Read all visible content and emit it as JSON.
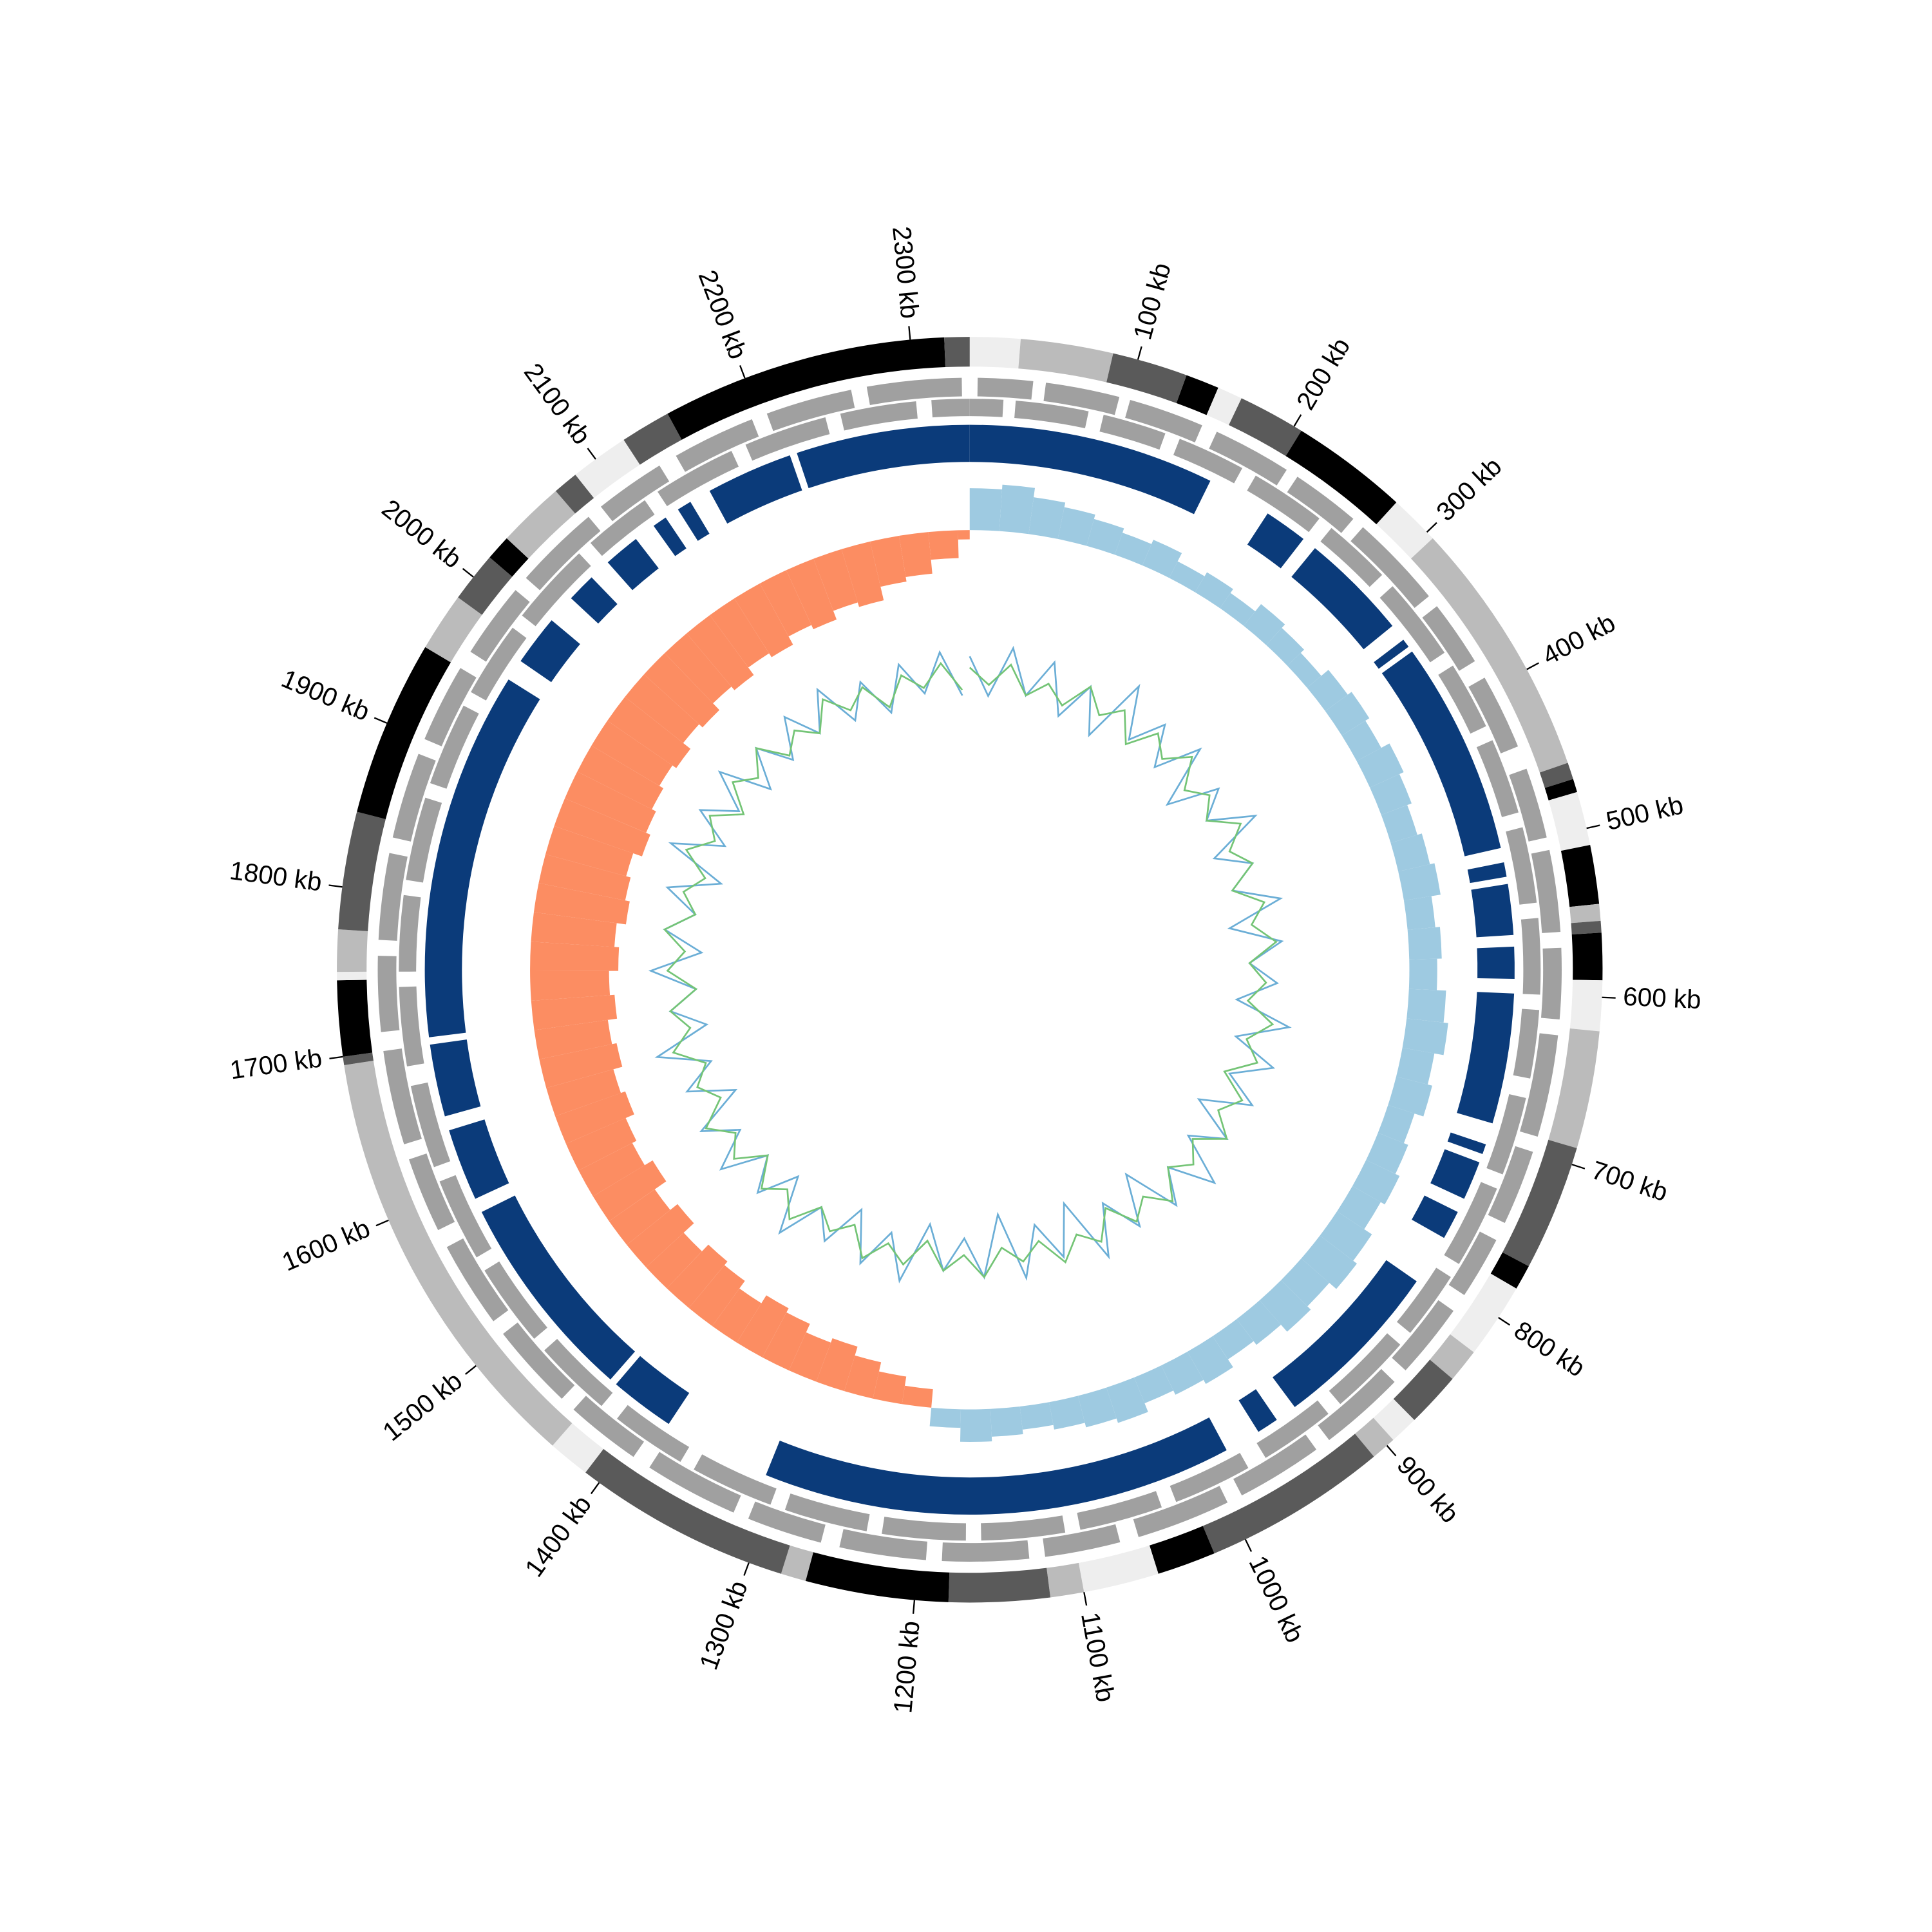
{
  "chart_data": {
    "type": "circos",
    "xlim": [
      0,
      2335
    ],
    "xticks": [
      {
        "value": 100,
        "label": "100 kb"
      },
      {
        "value": 200,
        "label": "200 kb"
      },
      {
        "value": 300,
        "label": "300 kb"
      },
      {
        "value": 400,
        "label": "400 kb"
      },
      {
        "value": 500,
        "label": "500 kb"
      },
      {
        "value": 600,
        "label": "600 kb"
      },
      {
        "value": 700,
        "label": "700 kb"
      },
      {
        "value": 800,
        "label": "800 kb"
      },
      {
        "value": 900,
        "label": "900 kb"
      },
      {
        "value": 1000,
        "label": "1000 kb"
      },
      {
        "value": 1100,
        "label": "1100 kb"
      },
      {
        "value": 1200,
        "label": "1200 kb"
      },
      {
        "value": 1300,
        "label": "1300 kb"
      },
      {
        "value": 1400,
        "label": "1400 kb"
      },
      {
        "value": 1500,
        "label": "1500 kb"
      },
      {
        "value": 1600,
        "label": "1600 kb"
      },
      {
        "value": 1700,
        "label": "1700 kb"
      },
      {
        "value": 1800,
        "label": "1800 kb"
      },
      {
        "value": 1900,
        "label": "1900 kb"
      },
      {
        "value": 2000,
        "label": "2000 kb"
      },
      {
        "value": 2100,
        "label": "2100 kb"
      },
      {
        "value": 2200,
        "label": "2200 kb"
      },
      {
        "value": 2300,
        "label": "2300 kb"
      }
    ],
    "bands": [
      {
        "start": 0,
        "end": 30,
        "color": "#eeeeee"
      },
      {
        "start": 30,
        "end": 85,
        "color": "#bbbbbb"
      },
      {
        "start": 85,
        "end": 130,
        "color": "#5a5a5a"
      },
      {
        "start": 130,
        "end": 150,
        "color": "#000000"
      },
      {
        "start": 150,
        "end": 165,
        "color": "#eeeeee"
      },
      {
        "start": 165,
        "end": 205,
        "color": "#5a5a5a"
      },
      {
        "start": 205,
        "end": 275,
        "color": "#000000"
      },
      {
        "start": 275,
        "end": 305,
        "color": "#eeeeee"
      },
      {
        "start": 305,
        "end": 460,
        "color": "#bbbbbb"
      },
      {
        "start": 460,
        "end": 470,
        "color": "#5a5a5a"
      },
      {
        "start": 470,
        "end": 478,
        "color": "#000000"
      },
      {
        "start": 478,
        "end": 510,
        "color": "#eeeeee"
      },
      {
        "start": 510,
        "end": 545,
        "color": "#000000"
      },
      {
        "start": 545,
        "end": 555,
        "color": "#bbbbbb"
      },
      {
        "start": 555,
        "end": 562,
        "color": "#5a5a5a"
      },
      {
        "start": 562,
        "end": 590,
        "color": "#000000"
      },
      {
        "start": 590,
        "end": 620,
        "color": "#eeeeee"
      },
      {
        "start": 620,
        "end": 690,
        "color": "#bbbbbb"
      },
      {
        "start": 690,
        "end": 765,
        "color": "#5a5a5a"
      },
      {
        "start": 765,
        "end": 780,
        "color": "#000000"
      },
      {
        "start": 780,
        "end": 825,
        "color": "#eeeeee"
      },
      {
        "start": 825,
        "end": 845,
        "color": "#bbbbbb"
      },
      {
        "start": 845,
        "end": 878,
        "color": "#5a5a5a"
      },
      {
        "start": 878,
        "end": 895,
        "color": "#eeeeee"
      },
      {
        "start": 895,
        "end": 910,
        "color": "#bbbbbb"
      },
      {
        "start": 910,
        "end": 1020,
        "color": "#5a5a5a"
      },
      {
        "start": 1020,
        "end": 1055,
        "color": "#000000"
      },
      {
        "start": 1055,
        "end": 1100,
        "color": "#eeeeee"
      },
      {
        "start": 1100,
        "end": 1120,
        "color": "#bbbbbb"
      },
      {
        "start": 1120,
        "end": 1180,
        "color": "#5a5a5a"
      },
      {
        "start": 1180,
        "end": 1265,
        "color": "#000000"
      },
      {
        "start": 1265,
        "end": 1280,
        "color": "#bbbbbb"
      },
      {
        "start": 1280,
        "end": 1410,
        "color": "#5a5a5a"
      },
      {
        "start": 1410,
        "end": 1435,
        "color": "#eeeeee"
      },
      {
        "start": 1435,
        "end": 1695,
        "color": "#bbbbbb"
      },
      {
        "start": 1695,
        "end": 1700,
        "color": "#5a5a5a"
      },
      {
        "start": 1700,
        "end": 1745,
        "color": "#000000"
      },
      {
        "start": 1745,
        "end": 1750,
        "color": "#eeeeee"
      },
      {
        "start": 1750,
        "end": 1775,
        "color": "#bbbbbb"
      },
      {
        "start": 1775,
        "end": 1845,
        "color": "#5a5a5a"
      },
      {
        "start": 1845,
        "end": 1950,
        "color": "#000000"
      },
      {
        "start": 1950,
        "end": 1985,
        "color": "#bbbbbb"
      },
      {
        "start": 1985,
        "end": 2015,
        "color": "#5a5a5a"
      },
      {
        "start": 2015,
        "end": 2030,
        "color": "#000000"
      },
      {
        "start": 2030,
        "end": 2070,
        "color": "#bbbbbb"
      },
      {
        "start": 2070,
        "end": 2085,
        "color": "#5a5a5a"
      },
      {
        "start": 2085,
        "end": 2120,
        "color": "#eeeeee"
      },
      {
        "start": 2120,
        "end": 2150,
        "color": "#5a5a5a"
      },
      {
        "start": 2150,
        "end": 2320,
        "color": "#000000"
      },
      {
        "start": 2320,
        "end": 2335,
        "color": "#5a5a5a"
      }
    ],
    "gene_color": "#a0a0a0",
    "genes_plus": [
      [
        5,
        40
      ],
      [
        48,
        95
      ],
      [
        102,
        150
      ],
      [
        160,
        210
      ],
      [
        218,
        262
      ],
      [
        270,
        330
      ],
      [
        338,
        380
      ],
      [
        392,
        440
      ],
      [
        455,
        500
      ],
      [
        508,
        560
      ],
      [
        570,
        615
      ],
      [
        625,
        690
      ],
      [
        700,
        748
      ],
      [
        760,
        800
      ],
      [
        812,
        860
      ],
      [
        870,
        925
      ],
      [
        935,
        990
      ],
      [
        1000,
        1060
      ],
      [
        1072,
        1120
      ],
      [
        1130,
        1185
      ],
      [
        1195,
        1250
      ],
      [
        1262,
        1310
      ],
      [
        1320,
        1380
      ],
      [
        1392,
        1440
      ],
      [
        1450,
        1505
      ],
      [
        1515,
        1570
      ],
      [
        1582,
        1630
      ],
      [
        1640,
        1700
      ],
      [
        1712,
        1760
      ],
      [
        1770,
        1825
      ],
      [
        1835,
        1890
      ],
      [
        1900,
        1950
      ],
      [
        1962,
        2010
      ],
      [
        2020,
        2075
      ],
      [
        2085,
        2130
      ],
      [
        2142,
        2195
      ],
      [
        2205,
        2260
      ],
      [
        2270,
        2330
      ]
    ],
    "genes_minus": [
      [
        0,
        22
      ],
      [
        30,
        78
      ],
      [
        88,
        130
      ],
      [
        140,
        185
      ],
      [
        195,
        245
      ],
      [
        255,
        300
      ],
      [
        310,
        365
      ],
      [
        375,
        420
      ],
      [
        430,
        480
      ],
      [
        490,
        540
      ],
      [
        550,
        600
      ],
      [
        610,
        655
      ],
      [
        668,
        720
      ],
      [
        730,
        785
      ],
      [
        795,
        840
      ],
      [
        850,
        905
      ],
      [
        915,
        965
      ],
      [
        978,
        1030
      ],
      [
        1040,
        1095
      ],
      [
        1105,
        1160
      ],
      [
        1170,
        1225
      ],
      [
        1235,
        1290
      ],
      [
        1300,
        1355
      ],
      [
        1365,
        1415
      ],
      [
        1428,
        1480
      ],
      [
        1490,
        1545
      ],
      [
        1555,
        1610
      ],
      [
        1620,
        1675
      ],
      [
        1688,
        1740
      ],
      [
        1750,
        1800
      ],
      [
        1810,
        1865
      ],
      [
        1875,
        1930
      ],
      [
        1940,
        1990
      ],
      [
        2000,
        2055
      ],
      [
        2065,
        2110
      ],
      [
        2120,
        2175
      ],
      [
        2185,
        2240
      ],
      [
        2250,
        2300
      ],
      [
        2310,
        2335
      ]
    ],
    "block_color": "#0b3b7a",
    "blocks": [
      [
        0,
        170
      ],
      [
        215,
        245
      ],
      [
        255,
        330
      ],
      [
        342,
        348
      ],
      [
        352,
        500
      ],
      [
        510,
        520
      ],
      [
        525,
        560
      ],
      [
        568,
        590
      ],
      [
        600,
        690
      ],
      [
        705,
        712
      ],
      [
        718,
        745
      ],
      [
        755,
        775
      ],
      [
        810,
        930
      ],
      [
        945,
        960
      ],
      [
        985,
        1310
      ],
      [
        1385,
        1430
      ],
      [
        1435,
        1580
      ],
      [
        1590,
        1640
      ],
      [
        1650,
        1700
      ],
      [
        1705,
        1960
      ],
      [
        1975,
        2010
      ],
      [
        2030,
        2050
      ],
      [
        2065,
        2090
      ],
      [
        2105,
        2115
      ],
      [
        2125,
        2135
      ],
      [
        2150,
        2210
      ],
      [
        2215,
        2335
      ]
    ],
    "x": [
      0,
      25,
      50,
      75,
      100,
      125,
      150,
      175,
      200,
      225,
      250,
      275,
      300,
      325,
      350,
      375,
      400,
      425,
      450,
      475,
      500,
      525,
      550,
      575,
      600,
      625,
      650,
      675,
      700,
      725,
      750,
      775,
      800,
      825,
      850,
      875,
      900,
      925,
      950,
      975,
      1000,
      1025,
      1050,
      1075,
      1100,
      1125,
      1150,
      1175,
      1200,
      1225,
      1250,
      1275,
      1300,
      1325,
      1350,
      1375,
      1400,
      1425,
      1450,
      1475,
      1500,
      1525,
      1550,
      1575,
      1600,
      1625,
      1650,
      1675,
      1700,
      1725,
      1750,
      1775,
      1800,
      1825,
      1850,
      1875,
      1900,
      1925,
      1950,
      1975,
      2000,
      2025,
      2050,
      2075,
      2100,
      2125,
      2150,
      2175,
      2200,
      2225,
      2250,
      2275,
      2300,
      2325
    ],
    "skew": {
      "ylim": [
        -0.12,
        0.06
      ],
      "pos_color": "#9ecae1",
      "neg_color": "#fc8d62",
      "values": [
        0.045,
        0.05,
        0.04,
        0.035,
        0.03,
        0.025,
        0.03,
        0.02,
        0.025,
        0.02,
        0.03,
        0.025,
        0.02,
        0.03,
        0.035,
        0.03,
        0.04,
        0.035,
        0.03,
        0.035,
        0.04,
        0.03,
        0.035,
        0.03,
        0.04,
        0.045,
        0.035,
        0.04,
        0.03,
        0.035,
        0.04,
        0.035,
        0.045,
        0.05,
        0.04,
        0.045,
        0.035,
        0.03,
        0.04,
        0.035,
        0.03,
        0.04,
        0.035,
        0.03,
        0.025,
        0.03,
        0.035,
        0.02,
        -0.02,
        -0.03,
        -0.04,
        -0.05,
        -0.045,
        -0.055,
        -0.06,
        -0.05,
        -0.06,
        -0.065,
        -0.055,
        -0.07,
        -0.06,
        -0.075,
        -0.065,
        -0.07,
        -0.08,
        -0.075,
        -0.085,
        -0.08,
        -0.09,
        -0.085,
        -0.095,
        -0.09,
        -0.1,
        -0.095,
        -0.09,
        -0.1,
        -0.095,
        -0.09,
        -0.085,
        -0.09,
        -0.08,
        -0.085,
        -0.075,
        -0.08,
        -0.07,
        -0.075,
        -0.065,
        -0.07,
        -0.06,
        -0.065,
        -0.05,
        -0.045,
        -0.03,
        -0.01
      ]
    },
    "inner": {
      "ylim": [
        -1,
        1
      ],
      "series": [
        {
          "color": "#6baed6",
          "values": [
            0.4,
            -0.3,
            0.6,
            -0.2,
            0.5,
            -0.4,
            0.3,
            -0.5,
            0.7,
            -0.2,
            0.4,
            -0.3,
            0.5,
            -0.6,
            0.3,
            -0.2,
            0.6,
            -0.4,
            0.2,
            -0.3,
            0.5,
            -0.5,
            0.4,
            -0.2,
            0.3,
            -0.4,
            0.6,
            -0.3,
            0.5,
            -0.2,
            0.4,
            -0.5,
            0.3,
            -0.3,
            0.6,
            -0.2,
            0.4,
            -0.6,
            0.3,
            -0.4,
            0.5,
            -0.7,
            0.2,
            -0.5,
            0.4,
            -0.8,
            0.3,
            -0.4,
            0.2,
            -0.6,
            0.5,
            -0.3,
            0.4,
            -0.5,
            0.3,
            -0.2,
            0.6,
            -0.4,
            0.3,
            -0.3,
            0.5,
            -0.2,
            0.4,
            -0.5,
            0.3,
            -0.3,
            0.6,
            -0.4,
            0.2,
            -0.3,
            0.5,
            -0.4,
            0.3,
            -0.2,
            0.4,
            -0.5,
            0.6,
            -0.3,
            0.4,
            -0.2,
            0.5,
            -0.4,
            0.3,
            -0.3,
            0.4,
            -0.2,
            0.5,
            -0.3,
            0.3,
            -0.4,
            0.4,
            -0.2,
            0.5,
            -0.3
          ]
        },
        {
          "color": "#74c476",
          "values": [
            0.2,
            -0.1,
            0.3,
            -0.2,
            0.1,
            -0.2,
            0.3,
            -0.1,
            0.2,
            -0.3,
            0.2,
            -0.1,
            0.3,
            -0.2,
            0.1,
            -0.2,
            0.3,
            -0.1,
            0.2,
            -0.3,
            0.2,
            -0.1,
            0.3,
            -0.2,
            0.1,
            -0.2,
            0.3,
            -0.1,
            0.2,
            -0.3,
            0.2,
            -0.1,
            0.3,
            -0.2,
            0.1,
            -0.2,
            0.3,
            -0.1,
            0.2,
            -0.3,
            0.2,
            -0.1,
            0.3,
            -0.2,
            0.1,
            -0.2,
            0.3,
            -0.1,
            0.2,
            -0.3,
            0.2,
            -0.1,
            0.3,
            -0.2,
            0.1,
            -0.2,
            0.3,
            -0.1,
            0.2,
            -0.3,
            0.2,
            -0.1,
            0.3,
            -0.2,
            0.1,
            -0.2,
            0.3,
            -0.1,
            0.2,
            -0.3,
            0.2,
            -0.1,
            0.3,
            -0.2,
            0.1,
            -0.2,
            0.3,
            -0.1,
            0.2,
            -0.3,
            0.2,
            -0.1,
            0.3,
            -0.2,
            0.1,
            -0.2,
            0.3,
            -0.1,
            0.2,
            -0.3,
            0.2,
            -0.1,
            0.3,
            -0.2
          ]
        }
      ]
    }
  }
}
